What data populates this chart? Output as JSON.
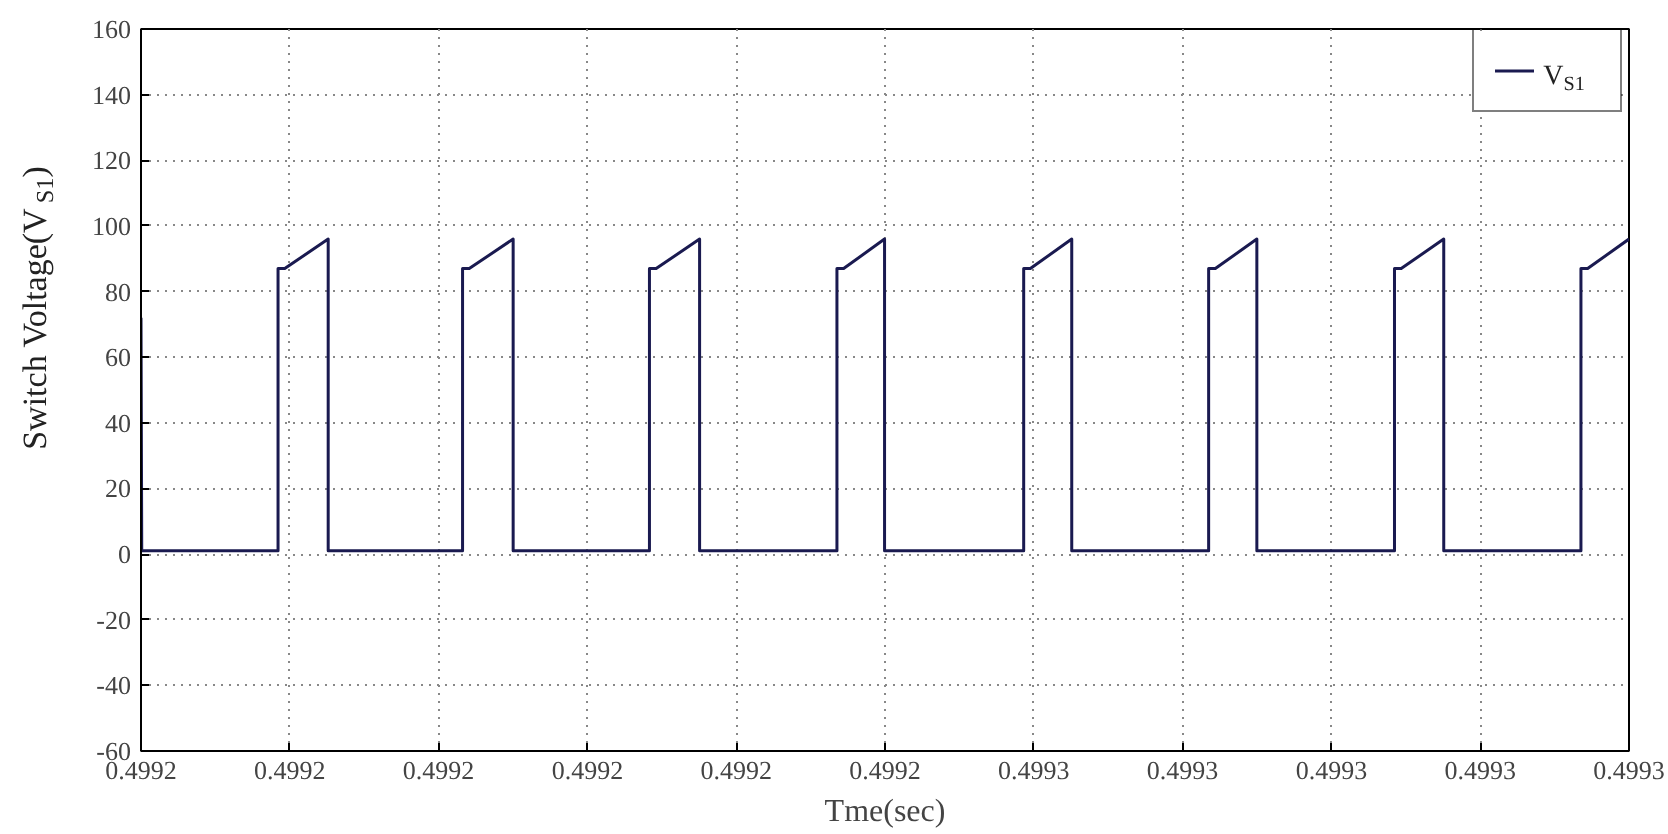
{
  "chart_data": {
    "type": "line",
    "xlabel": "Tme(sec)",
    "ylabel": "Switch Voltage(V$_{S1}$)",
    "xlim": [
      0.4992,
      0.4993
    ],
    "xticks": [
      {
        "value": 0.4992,
        "label": "0.4992"
      },
      {
        "value": 0.49921,
        "label": "0.4992"
      },
      {
        "value": 0.49922,
        "label": "0.4992"
      },
      {
        "value": 0.49923,
        "label": "0.4992"
      },
      {
        "value": 0.49924,
        "label": "0.4992"
      },
      {
        "value": 0.49925,
        "label": "0.4992"
      },
      {
        "value": 0.49926,
        "label": "0.4993"
      },
      {
        "value": 0.49927,
        "label": "0.4993"
      },
      {
        "value": 0.49928,
        "label": "0.4993"
      },
      {
        "value": 0.49929,
        "label": "0.4993"
      },
      {
        "value": 0.4993,
        "label": "0.4993"
      }
    ],
    "ylim": [
      -60,
      160
    ],
    "yticks": [
      -60,
      -40,
      -20,
      0,
      20,
      40,
      60,
      80,
      100,
      120,
      140,
      160
    ],
    "grid": true,
    "legend": "top right",
    "line_style": "solid",
    "series": [
      {
        "name": "V$_{S1}$",
        "color": "#1a1a50",
        "x": [
          0.4992,
          0.49920005,
          0.49920921,
          0.49920921,
          0.49920966,
          0.49921258,
          0.49921258,
          0.49922161,
          0.49922161,
          0.49922206,
          0.49922501,
          0.49922501,
          0.49923417,
          0.49923417,
          0.49923462,
          0.49923754,
          0.49923754,
          0.49924677,
          0.49924677,
          0.49924722,
          0.49924997,
          0.49924997,
          0.49925932,
          0.49925932,
          0.49925977,
          0.49926255,
          0.49926255,
          0.49927175,
          0.49927175,
          0.4992722,
          0.49927499,
          0.49927499,
          0.49928424,
          0.49928424,
          0.49928469,
          0.49928755,
          0.49928755,
          0.49929677,
          0.49929677,
          0.49929722,
          0.4993
        ],
        "values": [
          72,
          1,
          1,
          87,
          87,
          96,
          1,
          1,
          87,
          87,
          96,
          1,
          1,
          87,
          87,
          96,
          1,
          1,
          87,
          87,
          96,
          1,
          1,
          87,
          87,
          96,
          1,
          1,
          87,
          87,
          96,
          1,
          1,
          87,
          87,
          96,
          1,
          1,
          87,
          87,
          96
        ]
      }
    ]
  }
}
